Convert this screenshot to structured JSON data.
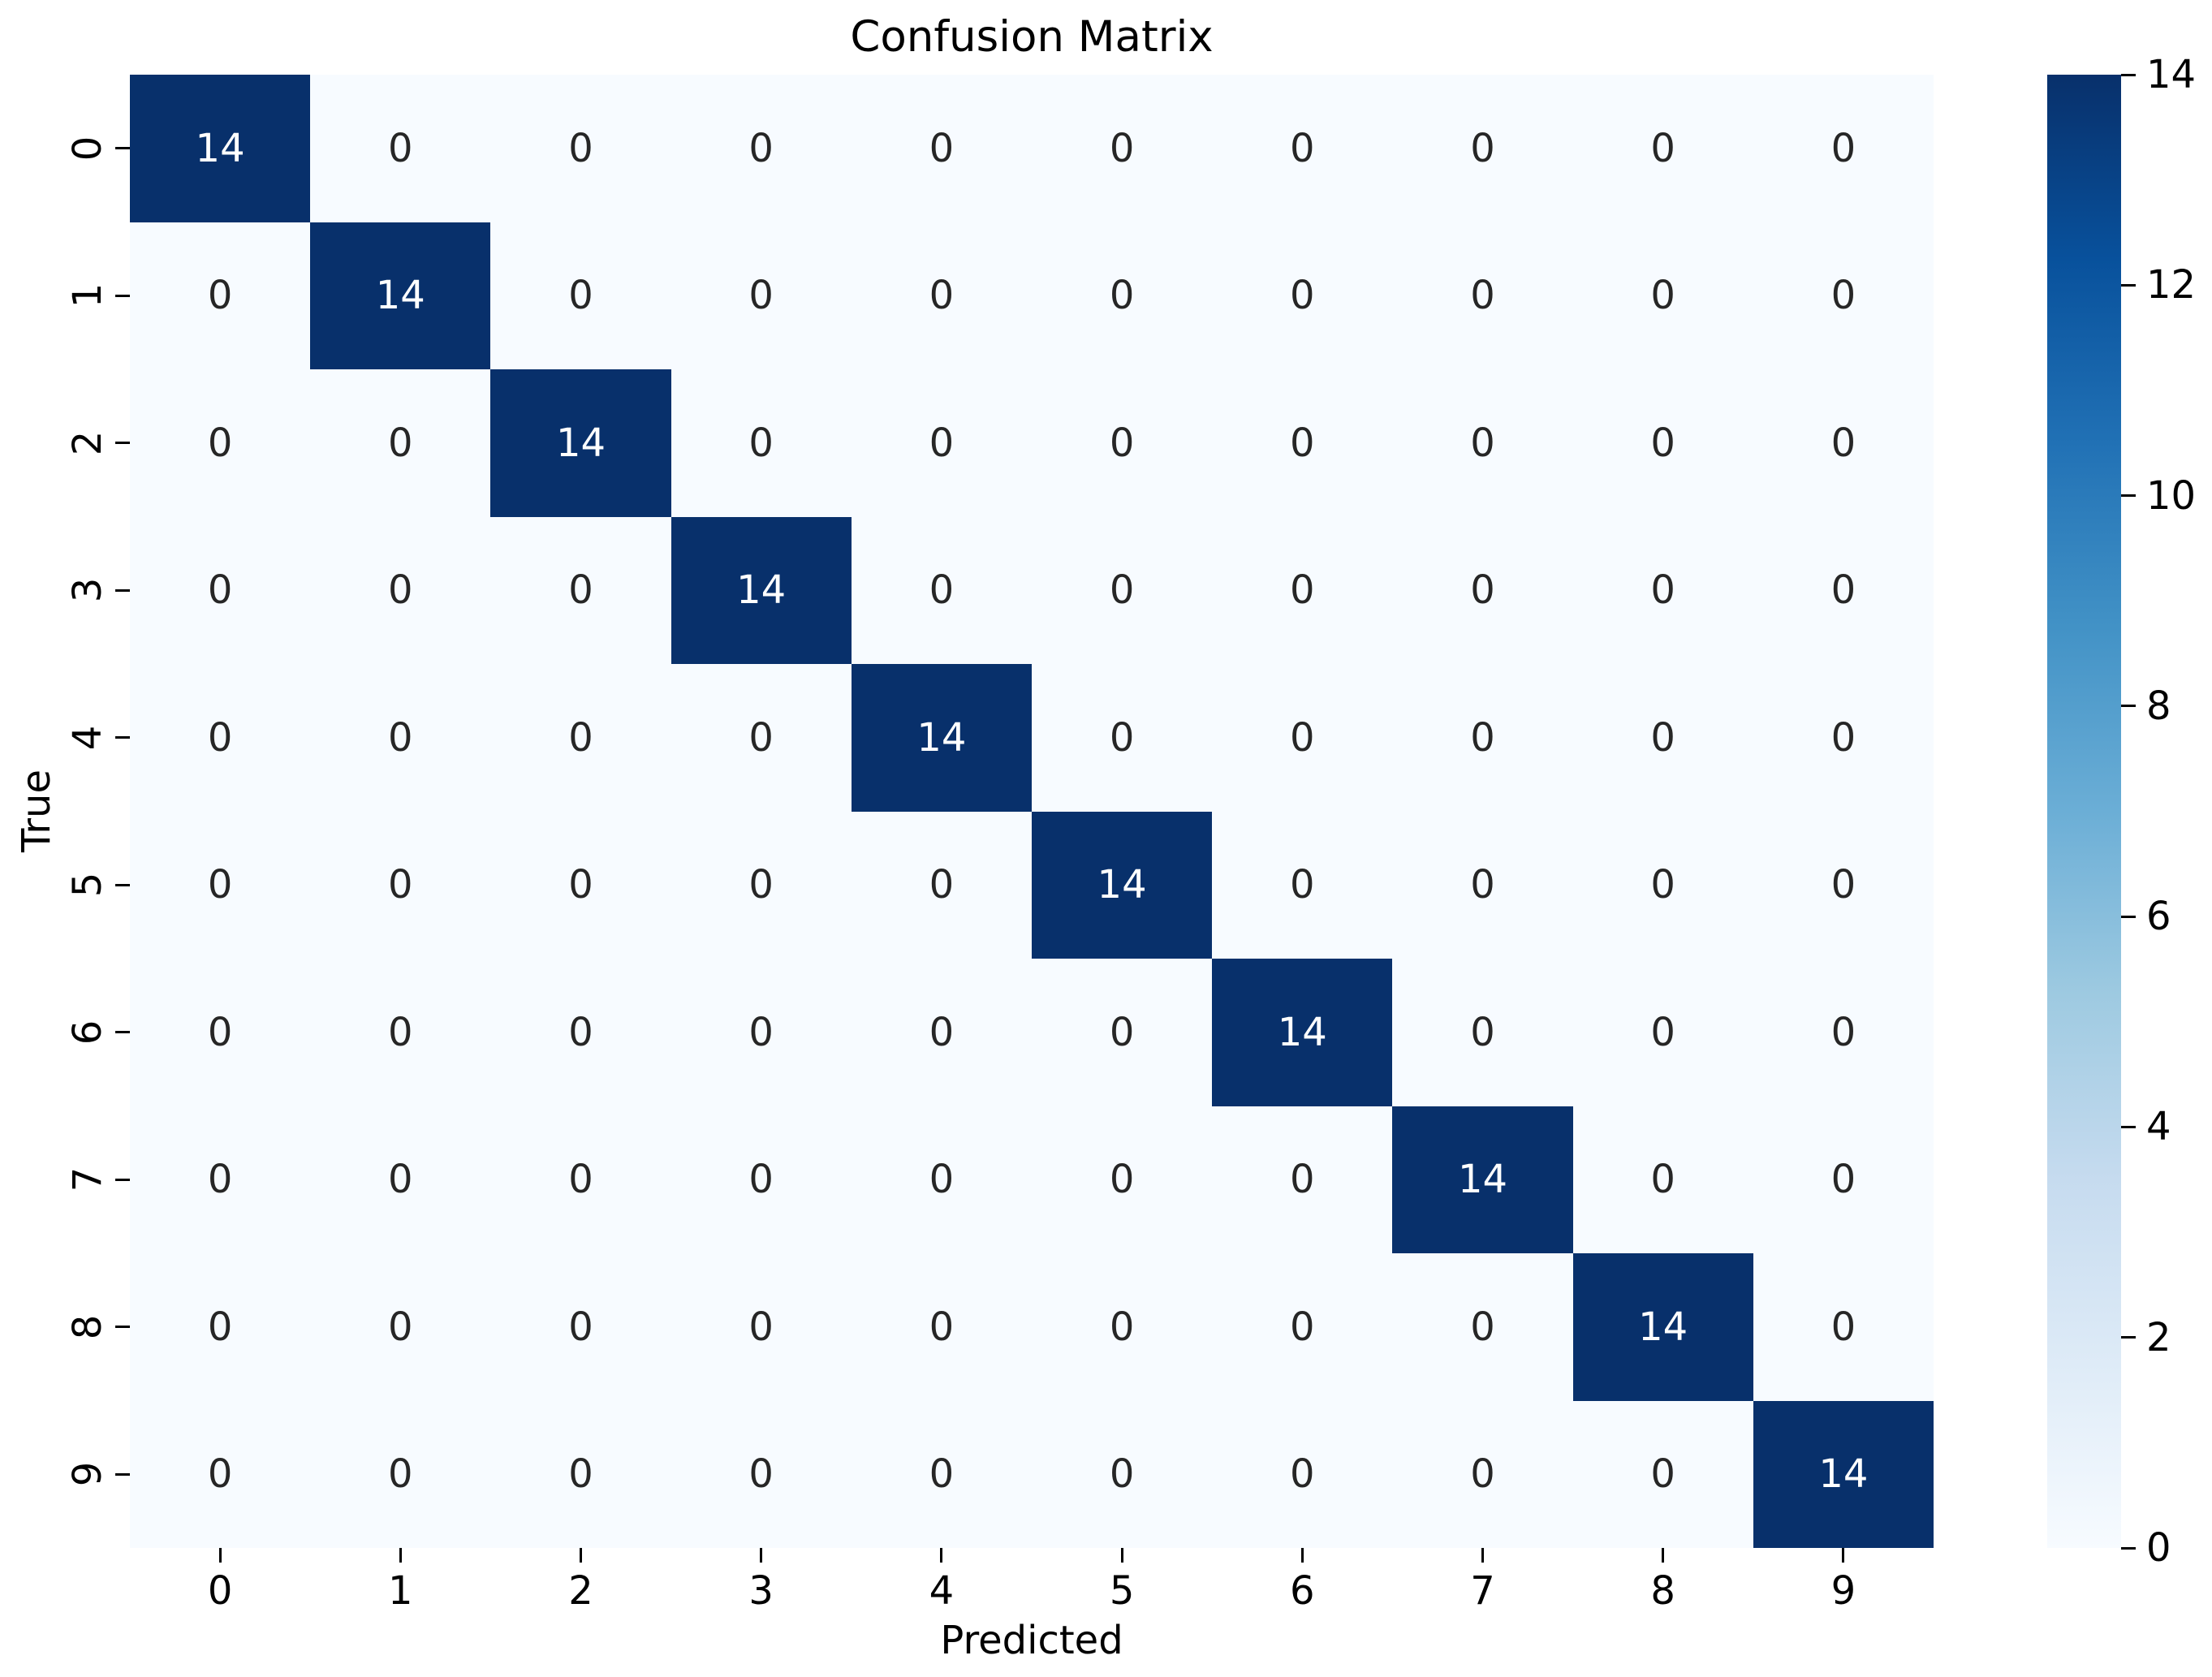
{
  "chart_data": {
    "type": "heatmap",
    "title": "Confusion Matrix",
    "xlabel": "Predicted",
    "ylabel": "True",
    "x_tick_labels": [
      "0",
      "1",
      "2",
      "3",
      "4",
      "5",
      "6",
      "7",
      "8",
      "9"
    ],
    "y_tick_labels": [
      "0",
      "1",
      "2",
      "3",
      "4",
      "5",
      "6",
      "7",
      "8",
      "9"
    ],
    "matrix": [
      [
        14,
        0,
        0,
        0,
        0,
        0,
        0,
        0,
        0,
        0
      ],
      [
        0,
        14,
        0,
        0,
        0,
        0,
        0,
        0,
        0,
        0
      ],
      [
        0,
        0,
        14,
        0,
        0,
        0,
        0,
        0,
        0,
        0
      ],
      [
        0,
        0,
        0,
        14,
        0,
        0,
        0,
        0,
        0,
        0
      ],
      [
        0,
        0,
        0,
        0,
        14,
        0,
        0,
        0,
        0,
        0
      ],
      [
        0,
        0,
        0,
        0,
        0,
        14,
        0,
        0,
        0,
        0
      ],
      [
        0,
        0,
        0,
        0,
        0,
        0,
        14,
        0,
        0,
        0
      ],
      [
        0,
        0,
        0,
        0,
        0,
        0,
        0,
        14,
        0,
        0
      ],
      [
        0,
        0,
        0,
        0,
        0,
        0,
        0,
        0,
        14,
        0
      ],
      [
        0,
        0,
        0,
        0,
        0,
        0,
        0,
        0,
        0,
        14
      ]
    ],
    "vmin": 0,
    "vmax": 14,
    "colorbar_ticks": [
      0,
      2,
      4,
      6,
      8,
      10,
      12,
      14
    ],
    "colorbar_position": "right",
    "grid": false,
    "colormap": "Blues",
    "colormap_stops": [
      "#f7fbff",
      "#deebf7",
      "#c6dbef",
      "#9ecae1",
      "#6baed6",
      "#4292c6",
      "#2171b5",
      "#08519c",
      "#08306b"
    ],
    "colors": {
      "figure_background": "#ffffff",
      "cell_low": "#f7fbff",
      "cell_high": "#08306b",
      "annotation_on_dark": "#ffffff",
      "annotation_on_light": "#262626",
      "axis_text": "#000000"
    }
  }
}
